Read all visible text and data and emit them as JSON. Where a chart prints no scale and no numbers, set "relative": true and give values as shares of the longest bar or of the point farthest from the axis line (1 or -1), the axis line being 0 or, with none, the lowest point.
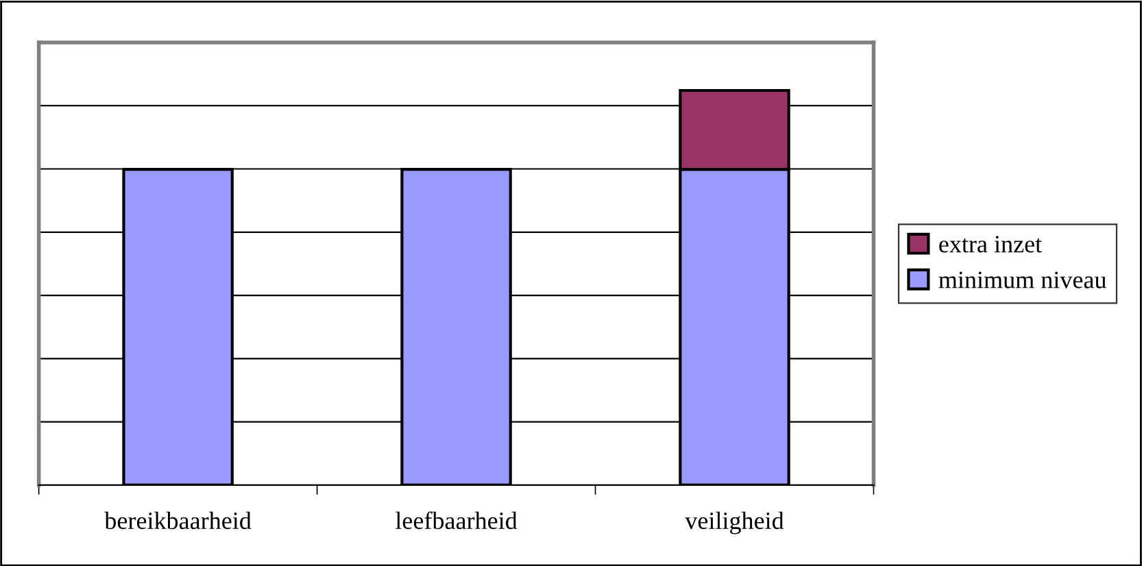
{
  "chart_data": {
    "type": "bar",
    "stacked": true,
    "relative": true,
    "categories": [
      "bereikbaarheid",
      "leefbaarheid",
      "veiligheid"
    ],
    "series": [
      {
        "name": "minimum niveau",
        "color": "#9999ff",
        "values": [
          0.8,
          0.8,
          0.8
        ]
      },
      {
        "name": "extra inzet",
        "color": "#993366",
        "values": [
          null,
          null,
          0.2
        ]
      }
    ],
    "grid": "y",
    "legend": "right"
  }
}
